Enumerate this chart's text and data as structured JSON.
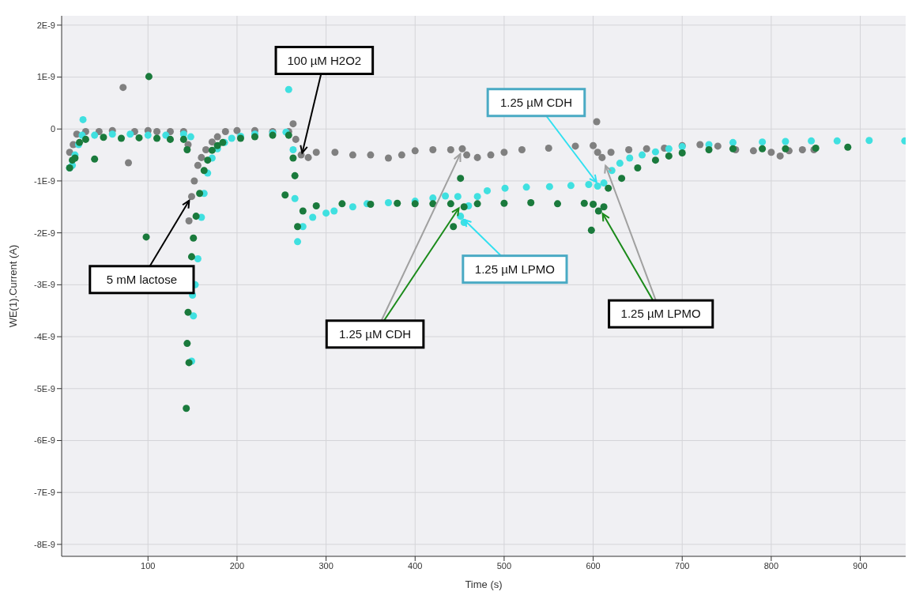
{
  "chart_data": {
    "type": "scatter",
    "xlabel": "Time (s)",
    "ylabel": "WE(1).Current (A)",
    "xlim": [
      3,
      951
    ],
    "xticks": [
      100,
      200,
      300,
      400,
      500,
      600,
      700,
      800,
      900
    ],
    "ylim": [
      -8.23e-09,
      2.18e-09
    ],
    "yticks": [
      {
        "value": 2e-09,
        "label": "2E-9"
      },
      {
        "value": 1e-09,
        "label": "1E-9"
      },
      0,
      {
        "value": -1e-09,
        "label": "-1E-9"
      },
      {
        "value": -2e-09,
        "label": "-2E-9"
      },
      {
        "value": -3e-09,
        "label": "-3E-9"
      },
      {
        "value": -4e-09,
        "label": "-4E-9"
      },
      {
        "value": -5e-09,
        "label": "-5E-9"
      },
      {
        "value": -6e-09,
        "label": "-6E-9"
      },
      {
        "value": -7e-09,
        "label": "-7E-9"
      },
      {
        "value": -8e-09,
        "label": "-8E-9"
      }
    ],
    "grid": true,
    "marker": "circle",
    "series": [
      {
        "color": "#808080",
        "x": [
          12,
          16,
          20,
          30,
          45,
          60,
          72,
          78,
          85,
          100,
          110,
          125,
          140,
          145,
          146,
          149,
          152,
          156,
          160,
          165,
          172,
          178,
          187,
          200,
          220,
          240,
          258,
          263,
          266,
          272,
          280,
          289,
          310,
          330,
          350,
          370,
          385,
          400,
          420,
          440,
          453,
          458,
          470,
          485,
          500,
          520,
          550,
          580,
          600,
          604,
          605,
          610,
          620,
          640,
          660,
          680,
          700,
          720,
          740,
          760,
          780,
          800,
          810,
          820,
          835,
          848
        ],
        "values": [
          -4.5e-10,
          -3e-10,
          -1e-10,
          -5e-11,
          -5e-11,
          -3e-11,
          8e-10,
          -6.5e-10,
          -5e-11,
          -3e-11,
          -5e-11,
          -5e-11,
          -5e-11,
          -3e-10,
          -1.77e-09,
          -1.3e-09,
          -1e-09,
          -7e-10,
          -5.5e-10,
          -4e-10,
          -2.5e-10,
          -1.5e-10,
          -5e-11,
          -3e-11,
          -3e-11,
          -5e-11,
          -5e-11,
          1e-10,
          -2e-10,
          -5e-10,
          -5.5e-10,
          -4.5e-10,
          -4.5e-10,
          -5e-10,
          -5e-10,
          -5.6e-10,
          -5e-10,
          -4.2e-10,
          -4e-10,
          -4e-10,
          -3.8e-10,
          -5e-10,
          -5.5e-10,
          -5e-10,
          -4.5e-10,
          -4e-10,
          -3.7e-10,
          -3.3e-10,
          -3.2e-10,
          1.4e-10,
          -4.5e-10,
          -5.5e-10,
          -4.5e-10,
          -4e-10,
          -3.8e-10,
          -3.7e-10,
          -3.2e-10,
          -3e-10,
          -3.3e-10,
          -4e-10,
          -4.2e-10,
          -4.5e-10,
          -5.2e-10,
          -4.2e-10,
          -4e-10,
          -4e-10
        ]
      },
      {
        "color": "#40e0e0",
        "x": [
          12,
          15,
          18,
          22,
          26,
          27,
          40,
          60,
          80,
          100,
          120,
          140,
          148,
          150,
          151,
          149,
          153,
          156,
          160,
          163,
          167,
          172,
          178,
          186,
          194,
          204,
          220,
          240,
          255,
          258,
          263,
          265,
          268,
          274,
          285,
          300,
          309,
          330,
          346,
          370,
          400,
          420,
          434,
          448,
          451,
          455,
          460,
          470,
          481,
          501,
          525,
          551,
          575,
          595,
          605,
          612,
          621,
          630,
          641,
          655,
          670,
          685,
          700,
          730,
          757,
          790,
          816,
          845,
          874,
          910,
          950
        ],
        "values": [
          -7.5e-10,
          -7e-10,
          -5e-10,
          -3e-10,
          -1.2e-10,
          1.8e-10,
          -1.2e-10,
          -1e-10,
          -1e-10,
          -1.2e-10,
          -1.2e-10,
          -1e-10,
          -1.5e-10,
          -3.2e-09,
          -3.6e-09,
          -4.47e-09,
          -3e-09,
          -2.5e-09,
          -1.7e-09,
          -1.24e-09,
          -8.5e-10,
          -5.6e-10,
          -3.8e-10,
          -2.6e-10,
          -1.8e-10,
          -1.4e-10,
          -1e-10,
          -8e-11,
          -6e-11,
          7.6e-10,
          -4e-10,
          -1.34e-09,
          -2.17e-09,
          -1.88e-09,
          -1.7e-09,
          -1.62e-09,
          -1.58e-09,
          -1.5e-09,
          -1.44e-09,
          -1.42e-09,
          -1.39e-09,
          -1.33e-09,
          -1.29e-09,
          -1.3e-09,
          -1.68e-09,
          -1.8e-09,
          -1.48e-09,
          -1.3e-09,
          -1.19e-09,
          -1.14e-09,
          -1.12e-09,
          -1.11e-09,
          -1.09e-09,
          -1.07e-09,
          -1.1e-09,
          -1.04e-09,
          -8e-10,
          -6.6e-10,
          -5.6e-10,
          -5e-10,
          -4.4e-10,
          -3.8e-10,
          -3.4e-10,
          -3e-10,
          -2.6e-10,
          -2.5e-10,
          -2.4e-10,
          -2.3e-10,
          -2.3e-10,
          -2.2e-10,
          -2.3e-10
        ]
      },
      {
        "color": "#1a7a3c",
        "x": [
          12,
          15,
          18,
          23,
          30,
          40,
          50,
          70,
          90,
          98,
          101,
          110,
          125,
          140,
          144,
          143,
          144,
          145,
          146,
          149,
          151,
          154,
          158,
          163,
          167,
          172,
          178,
          184,
          204,
          220,
          240,
          254,
          258,
          263,
          265,
          268,
          274,
          289,
          318,
          350,
          380,
          400,
          420,
          440,
          443,
          451,
          455,
          470,
          500,
          530,
          560,
          590,
          598,
          600,
          606,
          612,
          617,
          632,
          650,
          670,
          685,
          700,
          730,
          757,
          790,
          816,
          850,
          886
        ],
        "values": [
          -7.5e-10,
          -6e-10,
          -5.6e-10,
          -2.6e-10,
          -2e-10,
          -5.8e-10,
          -1.6e-10,
          -1.8e-10,
          -1.7e-10,
          -2.08e-09,
          1.01e-09,
          -1.8e-10,
          -2e-10,
          -2e-10,
          -4e-10,
          -5.38e-09,
          -4.13e-09,
          -3.53e-09,
          -4.5e-09,
          -2.46e-09,
          -2.1e-09,
          -1.68e-09,
          -1.24e-09,
          -8e-10,
          -6e-10,
          -4.1e-10,
          -3.2e-10,
          -2.6e-10,
          -1.8e-10,
          -1.5e-10,
          -1.2e-10,
          -1.27e-09,
          -1.2e-10,
          -5.6e-10,
          -9e-10,
          -1.88e-09,
          -1.58e-09,
          -1.48e-09,
          -1.44e-09,
          -1.45e-09,
          -1.43e-09,
          -1.44e-09,
          -1.44e-09,
          -1.44e-09,
          -1.88e-09,
          -9.5e-10,
          -1.5e-09,
          -1.44e-09,
          -1.43e-09,
          -1.42e-09,
          -1.44e-09,
          -1.43e-09,
          -1.95e-09,
          -1.45e-09,
          -1.58e-09,
          -1.5e-09,
          -1.14e-09,
          -9.5e-10,
          -7.5e-10,
          -6e-10,
          -5.2e-10,
          -4.6e-10,
          -4e-10,
          -3.8e-10,
          -3.8e-10,
          -3.8e-10,
          -3.7e-10,
          -3.5e-10
        ]
      }
    ],
    "annotations": [
      {
        "text": "5 mM lactose",
        "x": 149,
        "y": -1.3e-09
      },
      {
        "text": "100 µM H2O2",
        "x": 272,
        "y": -5.5e-10
      },
      {
        "text": "1.25 µM CDH",
        "x": 452,
        "y": -1.45e-09
      },
      {
        "text": "1.25 µM CDH",
        "x": 607,
        "y": -1.1e-09
      },
      {
        "text": "1.25 µM LPMO",
        "x": 451,
        "y": -1.68e-09
      },
      {
        "text": "1.25 µM LPMO",
        "x": 608,
        "y": -1.55e-09
      }
    ]
  }
}
